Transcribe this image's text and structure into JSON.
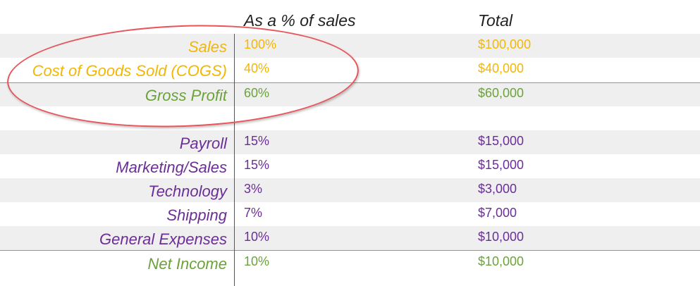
{
  "headers": {
    "pct": "As a % of sales",
    "total": "Total"
  },
  "colors": {
    "yellow": "#f2b705",
    "green": "#6ca23a",
    "purple": "#6b2e96",
    "highlight_ring": "#e8545a"
  },
  "rows": [
    {
      "label": "Sales",
      "pct": "100%",
      "total": "$100,000",
      "color": "#f2b705",
      "shaded": true
    },
    {
      "label": "Cost of Goods Sold (COGS)",
      "pct": "40%",
      "total": "$40,000",
      "color": "#f2b705",
      "shaded": false
    },
    {
      "label": "Gross Profit",
      "pct": "60%",
      "total": "$60,000",
      "color": "#6ca23a",
      "shaded": true
    },
    {
      "label": "",
      "pct": "",
      "total": "",
      "color": "#6b2e96",
      "shaded": false
    },
    {
      "label": "Payroll",
      "pct": "15%",
      "total": "$15,000",
      "color": "#6b2e96",
      "shaded": true
    },
    {
      "label": "Marketing/Sales",
      "pct": "15%",
      "total": "$15,000",
      "color": "#6b2e96",
      "shaded": false
    },
    {
      "label": "Technology",
      "pct": "3%",
      "total": "$3,000",
      "color": "#6b2e96",
      "shaded": true
    },
    {
      "label": "Shipping",
      "pct": "7%",
      "total": "$7,000",
      "color": "#6b2e96",
      "shaded": false
    },
    {
      "label": "General Expenses",
      "pct": "10%",
      "total": "$10,000",
      "color": "#6b2e96",
      "shaded": true
    },
    {
      "label": "Net Income",
      "pct": "10%",
      "total": "$10,000",
      "color": "#6ca23a",
      "shaded": false
    }
  ]
}
